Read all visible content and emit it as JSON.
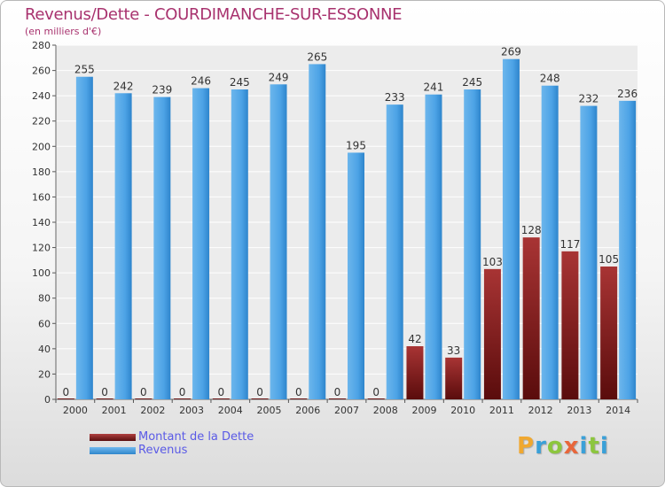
{
  "chart_data": {
    "type": "bar",
    "title": "Revenus/Dette - COURDIMANCHE-SUR-ESSONNE",
    "subtitle": "(en milliers d'€)",
    "xlabel": "",
    "ylabel": "",
    "ylim": [
      0,
      280
    ],
    "yticks": [
      0,
      20,
      40,
      60,
      80,
      100,
      120,
      140,
      160,
      180,
      200,
      220,
      240,
      260,
      280
    ],
    "grid": true,
    "categories": [
      "2000",
      "2001",
      "2002",
      "2003",
      "2004",
      "2005",
      "2006",
      "2007",
      "2008",
      "2009",
      "2010",
      "2011",
      "2012",
      "2013",
      "2014"
    ],
    "series": [
      {
        "name": "Montant de la Dette",
        "color": "#8a2323",
        "values": [
          0,
          0,
          0,
          0,
          0,
          0,
          0,
          0,
          0,
          42,
          33,
          103,
          128,
          117,
          105
        ]
      },
      {
        "name": "Revenus",
        "color": "#4da3e6",
        "values": [
          255,
          242,
          239,
          246,
          245,
          249,
          265,
          195,
          233,
          241,
          245,
          269,
          248,
          232,
          236
        ]
      }
    ],
    "legend": "bottom-left"
  },
  "logo": {
    "text": "Proxiti",
    "letters": [
      "P",
      "r",
      "o",
      "x",
      "i",
      "t",
      "i"
    ]
  }
}
